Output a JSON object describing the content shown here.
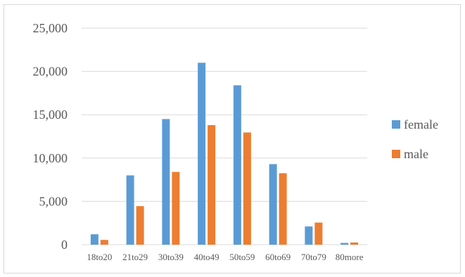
{
  "chart_data": {
    "type": "bar",
    "categories": [
      "18to20",
      "21to29",
      "30to39",
      "40to49",
      "50to59",
      "60to69",
      "70to79",
      "80more"
    ],
    "series": [
      {
        "name": "female",
        "color": "#5b9bd5",
        "values": [
          1200,
          8000,
          14500,
          21000,
          18400,
          9300,
          2100,
          200
        ]
      },
      {
        "name": "male",
        "color": "#ed7d31",
        "values": [
          550,
          4450,
          8400,
          13800,
          12950,
          8250,
          2550,
          250
        ]
      }
    ],
    "ylim": [
      0,
      25000
    ],
    "yticks": [
      {
        "value": 0,
        "label": "0"
      },
      {
        "value": 5000,
        "label": "5,000"
      },
      {
        "value": 10000,
        "label": "10,000"
      },
      {
        "value": 15000,
        "label": "15,000"
      },
      {
        "value": 20000,
        "label": "20,000"
      },
      {
        "value": 25000,
        "label": "25,000"
      }
    ],
    "grid": true,
    "legend": "right",
    "title": "",
    "xlabel": "",
    "ylabel": ""
  }
}
